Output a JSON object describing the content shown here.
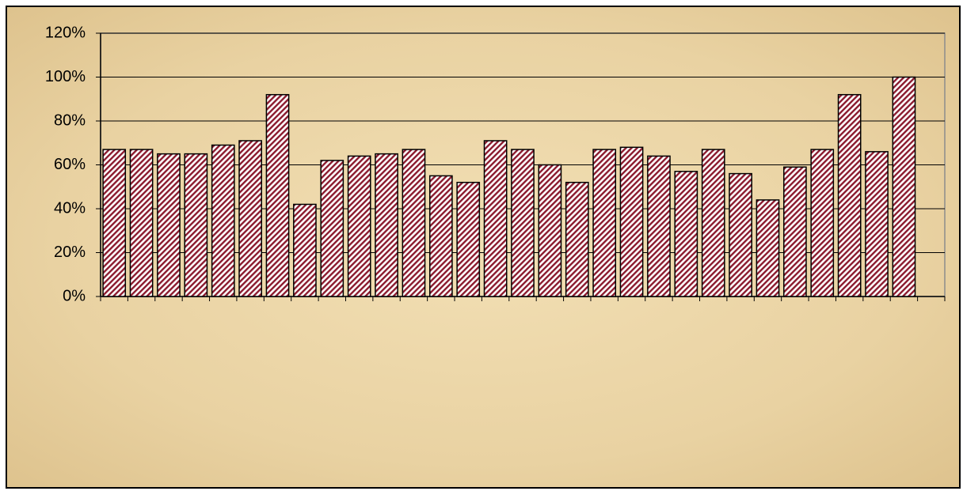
{
  "chart_data": {
    "type": "bar",
    "categories": [
      null,
      null,
      null,
      null,
      null,
      null,
      null,
      null,
      null,
      null,
      null,
      null,
      null,
      null,
      null,
      null,
      null,
      null,
      null,
      null,
      null,
      null,
      null,
      null,
      null,
      null,
      null,
      null,
      null,
      null,
      null
    ],
    "values": [
      67,
      67,
      65,
      65,
      69,
      71,
      92,
      42,
      62,
      64,
      65,
      67,
      55,
      52,
      71,
      67,
      60,
      52,
      67,
      68,
      64,
      57,
      67,
      56,
      44,
      59,
      67,
      92,
      66,
      100,
      null
    ],
    "color": "#8b1a2e",
    "ylim": [
      0,
      120
    ],
    "yticks": [
      {
        "value": 0,
        "label": "0%"
      },
      {
        "value": 20,
        "label": "20%"
      },
      {
        "value": 40,
        "label": "40%"
      },
      {
        "value": 60,
        "label": "60%"
      },
      {
        "value": 80,
        "label": "80%"
      },
      {
        "value": 100,
        "label": "100%"
      },
      {
        "value": 120,
        "label": "120%"
      }
    ],
    "grid": true
  }
}
